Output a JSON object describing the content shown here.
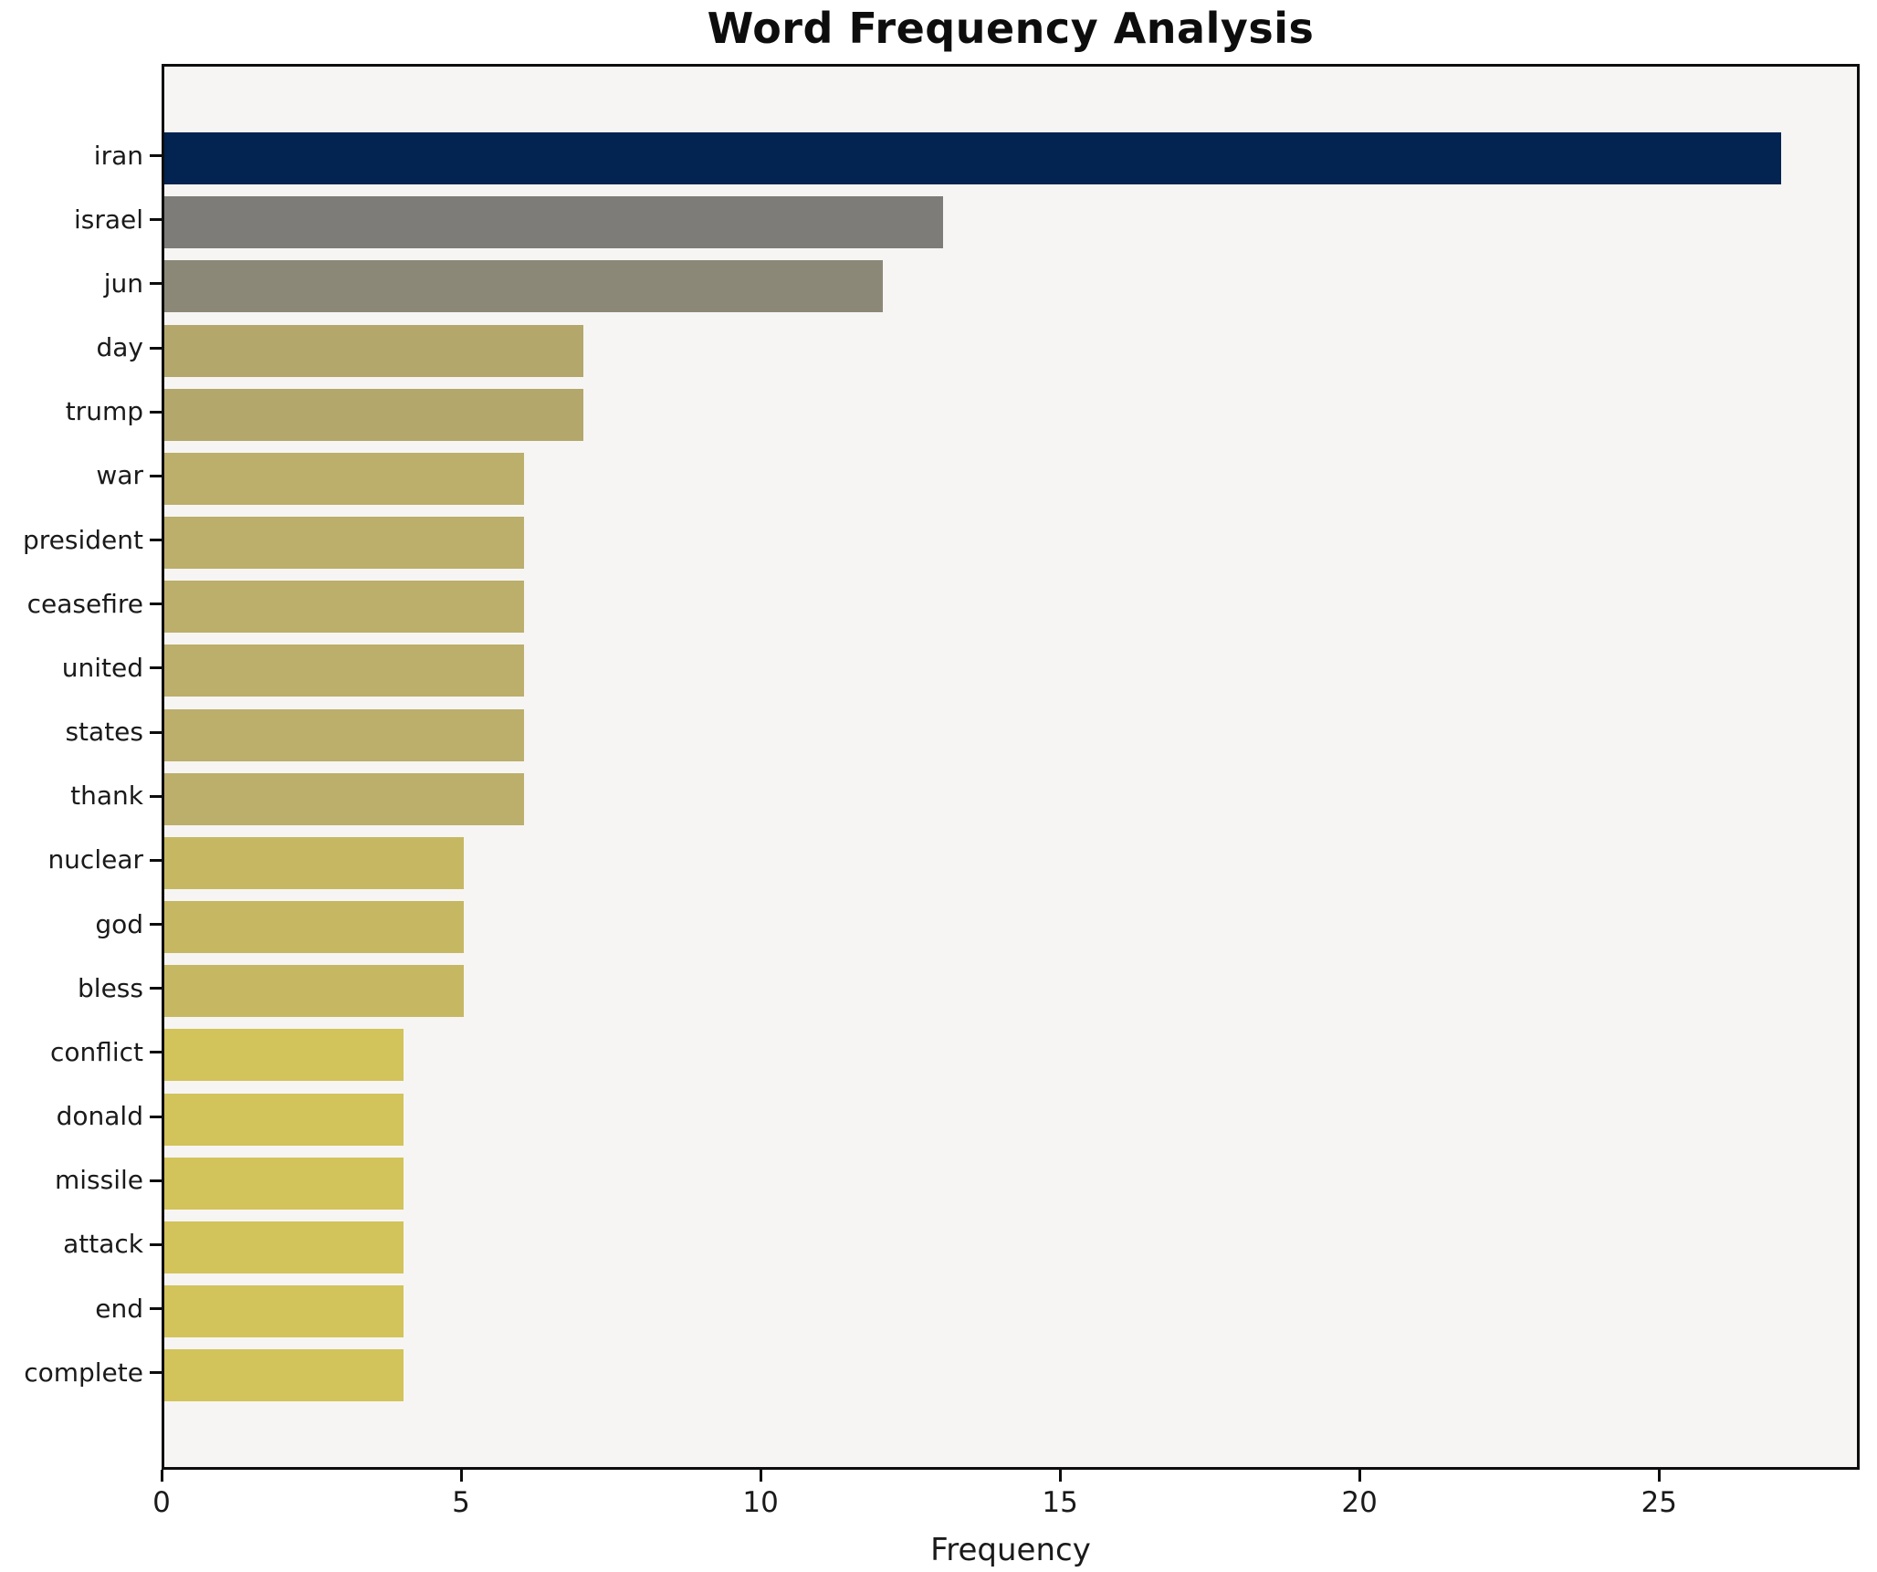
{
  "chart_data": {
    "type": "bar",
    "orientation": "horizontal",
    "title": "Word Frequency Analysis",
    "xlabel": "Frequency",
    "ylabel": "",
    "categories": [
      "iran",
      "israel",
      "jun",
      "day",
      "trump",
      "war",
      "president",
      "ceasefire",
      "united",
      "states",
      "thank",
      "nuclear",
      "god",
      "bless",
      "conflict",
      "donald",
      "missile",
      "attack",
      "end",
      "complete"
    ],
    "values": [
      27,
      13,
      12,
      7,
      7,
      6,
      6,
      6,
      6,
      6,
      6,
      5,
      5,
      5,
      4,
      4,
      4,
      4,
      4,
      4
    ],
    "bar_colors": [
      "#032350",
      "#7e7c78",
      "#8b8877",
      "#b3a76c",
      "#b3a76c",
      "#bcae6b",
      "#bcae6b",
      "#bcae6b",
      "#bcae6b",
      "#bcae6b",
      "#bcae6b",
      "#c6b863",
      "#c6b863",
      "#c6b863",
      "#d2c35b",
      "#d2c35b",
      "#d2c35b",
      "#d2c35b",
      "#d2c35b",
      "#d2c35b"
    ],
    "x_ticks": [
      0,
      5,
      10,
      15,
      20,
      25
    ],
    "xlim": [
      0,
      28.35
    ],
    "grid": false,
    "legend": null,
    "colors": {
      "plot_background": "#f6f5f3",
      "figure_background": "#ffffff",
      "spine": "#0d0d0d",
      "text": "#1a1a1a"
    }
  }
}
